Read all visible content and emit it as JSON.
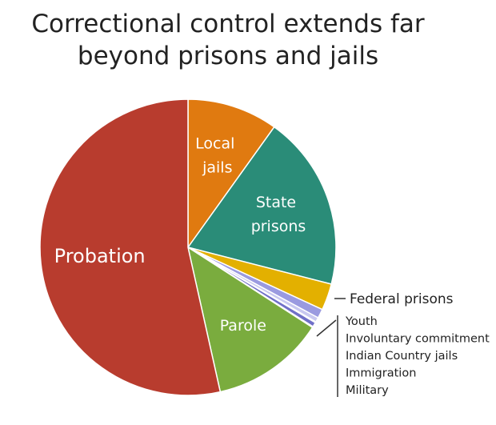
{
  "chart_data": {
    "type": "pie",
    "title": "Correctional control extends far beyond prisons and jails",
    "categories": [
      "Local jails",
      "State prisons",
      "Federal prisons",
      "Youth",
      "Involuntary commitment",
      "Indian Country jails",
      "Immigration",
      "Military",
      "Parole",
      "Probation"
    ],
    "values": [
      9.9,
      19.1,
      2.9,
      1.0,
      0.5,
      0.1,
      0.5,
      0.1,
      12.4,
      53.5
    ],
    "colors": [
      "#e07a10",
      "#2a8c78",
      "#e3b000",
      "#9a9ae0",
      "#c8c8f0",
      "#ffffff",
      "#7070c8",
      "#ffffff",
      "#7aac3e",
      "#b83c2e"
    ]
  }
}
